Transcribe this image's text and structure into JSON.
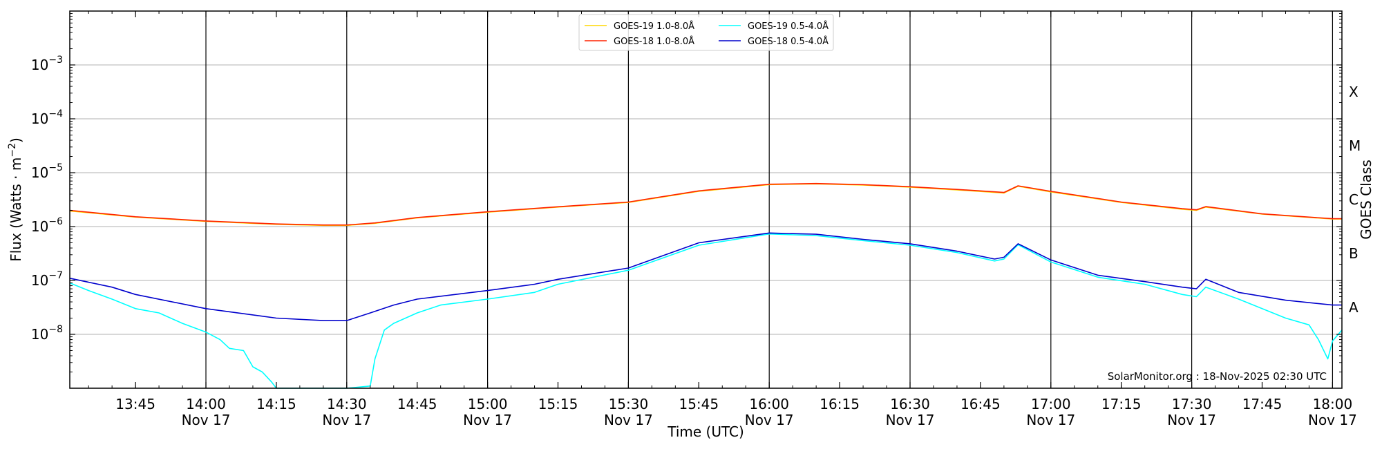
{
  "chart_data": {
    "type": "line",
    "title": "",
    "xlabel": "Time (UTC)",
    "ylabel": "Flux (Watts · m⁻²)",
    "ylabel_parts": {
      "base": "Flux (Watts · m",
      "sup": "−2",
      "close": ")"
    },
    "y2label": "GOES Class",
    "yscale": "log",
    "xlim": [
      "2025-11-17 13:31",
      "2025-11-17 18:02"
    ],
    "ylim": [
      1e-09,
      0.01
    ],
    "y_ticks": [
      {
        "value": 1e-08,
        "base": "10",
        "exp": "−8"
      },
      {
        "value": 1e-07,
        "base": "10",
        "exp": "−7"
      },
      {
        "value": 1e-06,
        "base": "10",
        "exp": "−6"
      },
      {
        "value": 1e-05,
        "base": "10",
        "exp": "−5"
      },
      {
        "value": 0.0001,
        "base": "10",
        "exp": "−4"
      },
      {
        "value": 0.001,
        "base": "10",
        "exp": "−3"
      }
    ],
    "x_ticks": [
      {
        "time": "13:45",
        "labels": [
          "13:45"
        ]
      },
      {
        "time": "14:00",
        "labels": [
          "14:00",
          "Nov 17"
        ]
      },
      {
        "time": "14:15",
        "labels": [
          "14:15"
        ]
      },
      {
        "time": "14:30",
        "labels": [
          "14:30",
          "Nov 17"
        ]
      },
      {
        "time": "14:45",
        "labels": [
          "14:45"
        ]
      },
      {
        "time": "15:00",
        "labels": [
          "15:00",
          "Nov 17"
        ]
      },
      {
        "time": "15:15",
        "labels": [
          "15:15"
        ]
      },
      {
        "time": "15:30",
        "labels": [
          "15:30",
          "Nov 17"
        ]
      },
      {
        "time": "15:45",
        "labels": [
          "15:45"
        ]
      },
      {
        "time": "16:00",
        "labels": [
          "16:00",
          "Nov 17"
        ]
      },
      {
        "time": "16:15",
        "labels": [
          "16:15"
        ]
      },
      {
        "time": "16:30",
        "labels": [
          "16:30",
          "Nov 17"
        ]
      },
      {
        "time": "16:45",
        "labels": [
          "16:45"
        ]
      },
      {
        "time": "17:00",
        "labels": [
          "17:00",
          "Nov 17"
        ]
      },
      {
        "time": "17:15",
        "labels": [
          "17:15"
        ]
      },
      {
        "time": "17:30",
        "labels": [
          "17:30",
          "Nov 17"
        ]
      },
      {
        "time": "17:45",
        "labels": [
          "17:45"
        ]
      },
      {
        "time": "18:00",
        "labels": [
          "18:00",
          "Nov 17"
        ]
      }
    ],
    "vertical_lines": [
      "14:00",
      "14:30",
      "15:00",
      "15:30",
      "16:00",
      "16:30",
      "17:00",
      "17:30",
      "18:00"
    ],
    "goes_classes": [
      {
        "label": "A",
        "value": 3.16e-08
      },
      {
        "label": "B",
        "value": 3.16e-07
      },
      {
        "label": "C",
        "value": 3.16e-06
      },
      {
        "label": "M",
        "value": 3.16e-05
      },
      {
        "label": "X",
        "value": 0.000316
      }
    ],
    "grid": "horizontal at decades",
    "legend_position": "top-center",
    "credit": "SolarMonitor.org : 18-Nov-2025 02:30 UTC",
    "series": [
      {
        "name": "GOES-19 1.0-8.0Å",
        "color": "#ffd700",
        "x": [
          "13:31",
          "13:45",
          "14:00",
          "14:15",
          "14:25",
          "14:30",
          "14:36",
          "14:45",
          "15:00",
          "15:15",
          "15:30",
          "15:45",
          "16:00",
          "16:10",
          "16:20",
          "16:30",
          "16:40",
          "16:50",
          "16:53",
          "17:00",
          "17:15",
          "17:28",
          "17:31",
          "17:33",
          "17:45",
          "18:00",
          "18:02"
        ],
        "values": [
          1.95e-06,
          1.5e-06,
          1.25e-06,
          1.1e-06,
          1.05e-06,
          1.05e-06,
          1.15e-06,
          1.45e-06,
          1.85e-06,
          2.3e-06,
          2.8e-06,
          4.5e-06,
          6e-06,
          6.2e-06,
          5.9e-06,
          5.4e-06,
          4.8e-06,
          4.2e-06,
          5.6e-06,
          4.4e-06,
          2.8e-06,
          2.1e-06,
          2e-06,
          2.3e-06,
          1.7e-06,
          1.38e-06,
          1.38e-06
        ]
      },
      {
        "name": "GOES-18 1.0-8.0Å",
        "color": "#ff2200",
        "x": [
          "13:31",
          "13:45",
          "14:00",
          "14:15",
          "14:25",
          "14:30",
          "14:36",
          "14:45",
          "15:00",
          "15:15",
          "15:30",
          "15:45",
          "16:00",
          "16:10",
          "16:20",
          "16:30",
          "16:40",
          "16:50",
          "16:53",
          "17:00",
          "17:15",
          "17:28",
          "17:31",
          "17:33",
          "17:45",
          "18:00",
          "18:02"
        ],
        "values": [
          2e-06,
          1.52e-06,
          1.27e-06,
          1.12e-06,
          1.07e-06,
          1.07e-06,
          1.17e-06,
          1.47e-06,
          1.88e-06,
          2.33e-06,
          2.85e-06,
          4.6e-06,
          6.1e-06,
          6.3e-06,
          6e-06,
          5.5e-06,
          4.9e-06,
          4.3e-06,
          5.7e-06,
          4.5e-06,
          2.85e-06,
          2.15e-06,
          2.05e-06,
          2.35e-06,
          1.72e-06,
          1.4e-06,
          1.4e-06
        ]
      },
      {
        "name": "GOES-19 0.5-4.0Å",
        "color": "#00ffff",
        "x": [
          "13:31",
          "13:35",
          "13:40",
          "13:45",
          "13:50",
          "13:55",
          "14:00",
          "14:03",
          "14:05",
          "14:08",
          "14:10",
          "14:12",
          "14:14",
          "14:15",
          "14:30",
          "14:35",
          "14:36",
          "14:38",
          "14:40",
          "14:45",
          "14:50",
          "15:00",
          "15:10",
          "15:15",
          "15:30",
          "15:45",
          "16:00",
          "16:10",
          "16:20",
          "16:30",
          "16:40",
          "16:48",
          "16:50",
          "16:53",
          "17:00",
          "17:10",
          "17:20",
          "17:28",
          "17:31",
          "17:33",
          "17:40",
          "17:45",
          "17:50",
          "17:55",
          "17:57",
          "17:59",
          "18:00",
          "18:02"
        ],
        "values": [
          9e-08,
          6.5e-08,
          4.5e-08,
          3e-08,
          2.5e-08,
          1.6e-08,
          1.1e-08,
          8e-09,
          5.5e-09,
          5e-09,
          2.5e-09,
          2e-09,
          1.3e-09,
          1e-09,
          1e-09,
          1.1e-09,
          3.5e-09,
          1.2e-08,
          1.6e-08,
          2.5e-08,
          3.5e-08,
          4.5e-08,
          6e-08,
          8.5e-08,
          1.55e-07,
          4.5e-07,
          7.3e-07,
          6.8e-07,
          5.5e-07,
          4.5e-07,
          3.3e-07,
          2.3e-07,
          2.5e-07,
          4.6e-07,
          2.2e-07,
          1.15e-07,
          8.5e-08,
          5.5e-08,
          5e-08,
          7.5e-08,
          4.5e-08,
          3e-08,
          2e-08,
          1.5e-08,
          8e-09,
          3.5e-09,
          7.5e-09,
          1.2e-08
        ]
      },
      {
        "name": "GOES-18 0.5-4.0Å",
        "color": "#0000cc",
        "x": [
          "13:31",
          "13:40",
          "13:45",
          "14:00",
          "14:15",
          "14:25",
          "14:30",
          "14:35",
          "14:40",
          "14:45",
          "15:00",
          "15:10",
          "15:15",
          "15:30",
          "15:45",
          "16:00",
          "16:10",
          "16:20",
          "16:30",
          "16:40",
          "16:48",
          "16:50",
          "16:53",
          "17:00",
          "17:10",
          "17:20",
          "17:28",
          "17:31",
          "17:33",
          "17:40",
          "17:50",
          "18:00",
          "18:02"
        ],
        "values": [
          1.1e-07,
          7.5e-08,
          5.5e-08,
          3e-08,
          2e-08,
          1.8e-08,
          1.8e-08,
          2.5e-08,
          3.5e-08,
          4.5e-08,
          6.5e-08,
          8.5e-08,
          1.05e-07,
          1.7e-07,
          5e-07,
          7.6e-07,
          7.2e-07,
          5.8e-07,
          4.8e-07,
          3.5e-07,
          2.5e-07,
          2.7e-07,
          4.8e-07,
          2.4e-07,
          1.25e-07,
          9.5e-08,
          7.5e-08,
          7e-08,
          1.05e-07,
          6e-08,
          4.3e-08,
          3.5e-08,
          3.5e-08
        ]
      }
    ]
  }
}
